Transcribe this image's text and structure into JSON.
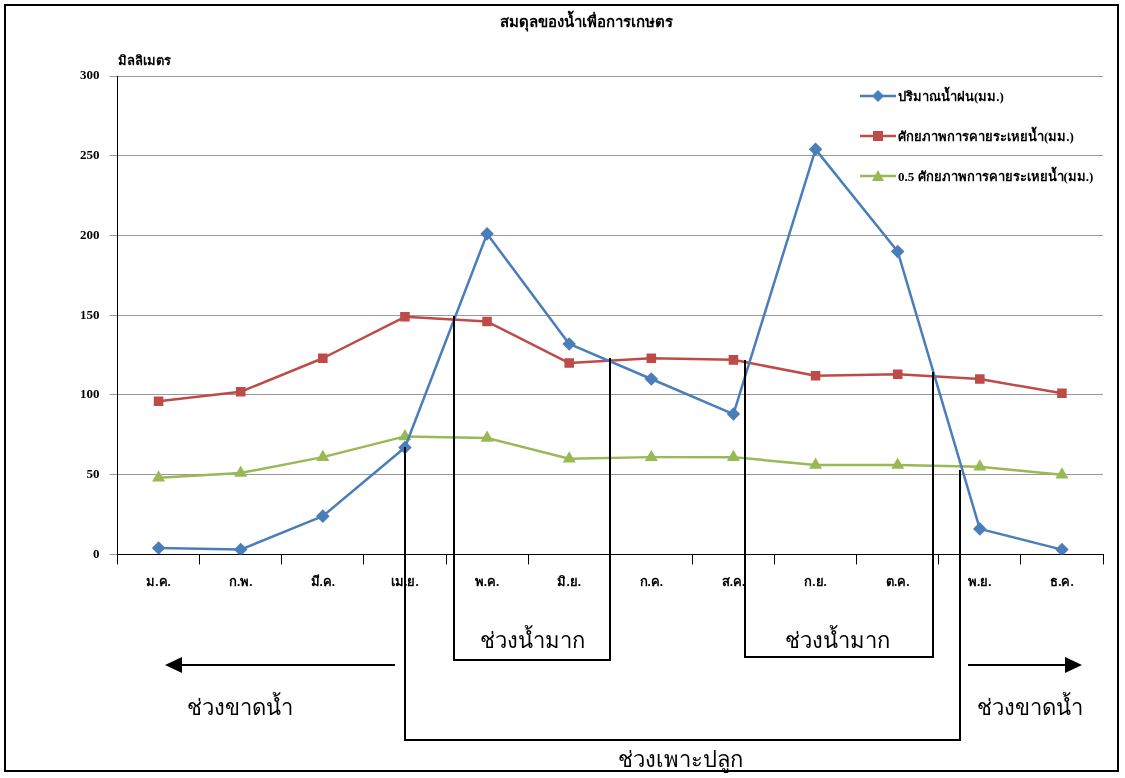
{
  "chart_data": {
    "type": "line",
    "title": "สมดุลของน้ำเพื่อการเกษตร",
    "ylabel": "มิลลิเมตร",
    "categories": [
      "ม.ค.",
      "ก.พ.",
      "มี.ค.",
      "เม.ย.",
      "พ.ค.",
      "มิ.ย.",
      "ก.ค.",
      "ส.ค.",
      "ก.ย.",
      "ต.ค.",
      "พ.ย.",
      "ธ.ค."
    ],
    "series": [
      {
        "name": "ปริมาณน้ำฝน(มม.)",
        "color": "#4a7ebb",
        "marker": "diamond",
        "values": [
          4,
          3,
          24,
          67,
          201,
          132,
          110,
          88,
          254,
          190,
          16,
          3
        ]
      },
      {
        "name": "ศักยภาพการคายระเหยน้ำ(มม.)",
        "color": "#be4b48",
        "marker": "square",
        "values": [
          96,
          102,
          123,
          149,
          146,
          120,
          123,
          122,
          112,
          113,
          110,
          101
        ]
      },
      {
        "name": "0.5 ศักยภาพการคายระเหยน้ำ(มม.)",
        "color": "#98b954",
        "marker": "triangle",
        "values": [
          48,
          51,
          61,
          74,
          73,
          60,
          61,
          61,
          56,
          56,
          55,
          50
        ]
      }
    ],
    "ylim": [
      0,
      300
    ],
    "yticks": [
      0,
      50,
      100,
      150,
      200,
      250,
      300
    ],
    "grid": "y",
    "legend": "top right",
    "line_style": "solid",
    "annotations": [
      "ช่วงน้ำมาก",
      "ช่วงน้ำมาก",
      "ช่วงขาดน้ำ",
      "ช่วงขาดน้ำ",
      "ช่วงเพาะปลูก"
    ]
  }
}
